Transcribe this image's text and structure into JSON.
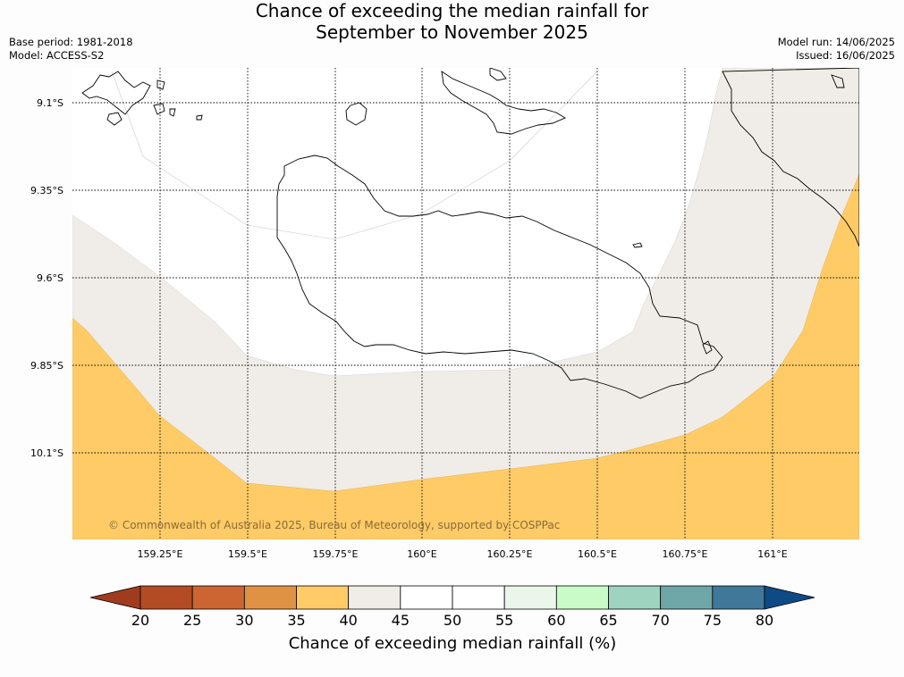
{
  "title": {
    "line1": "Chance of exceeding the median rainfall for",
    "line2": "September to November 2025"
  },
  "meta": {
    "base_period": "Base period: 1981-2018",
    "model": "Model: ACCESS-S2",
    "model_run": "Model run: 14/06/2025",
    "issued": "Issued: 16/06/2025"
  },
  "map": {
    "lat_labels": [
      "9.1°S",
      "9.35°S",
      "9.6°S",
      "9.85°S",
      "10.1°S"
    ],
    "lon_labels": [
      "159.25°E",
      "159.5°E",
      "159.75°E",
      "160°E",
      "160.25°E",
      "160.5°E",
      "160.75°E",
      "161°E"
    ],
    "copyright": "© Commonwealth of Australia 2025, Bureau of Meteorology, supported by COSPPac",
    "category_colors": {
      "35-40": "#fecb66",
      "40-45": "#f0ece7",
      "45-50": "#ffffff"
    }
  },
  "colorbar": {
    "ticks": [
      "20",
      "25",
      "30",
      "35",
      "40",
      "45",
      "50",
      "55",
      "60",
      "65",
      "70",
      "75",
      "80"
    ],
    "under_color": "#a03c1e",
    "over_color": "#0e4a86",
    "colors": [
      "#b34b25",
      "#cc6532",
      "#e09244",
      "#fecb66",
      "#f0ece7",
      "#ffffff",
      "#ffffff",
      "#eaf6ea",
      "#c8fbc8",
      "#9dd3bf",
      "#6fa6a7",
      "#3f7898"
    ],
    "label": "Chance of exceeding median rainfall (%)"
  }
}
